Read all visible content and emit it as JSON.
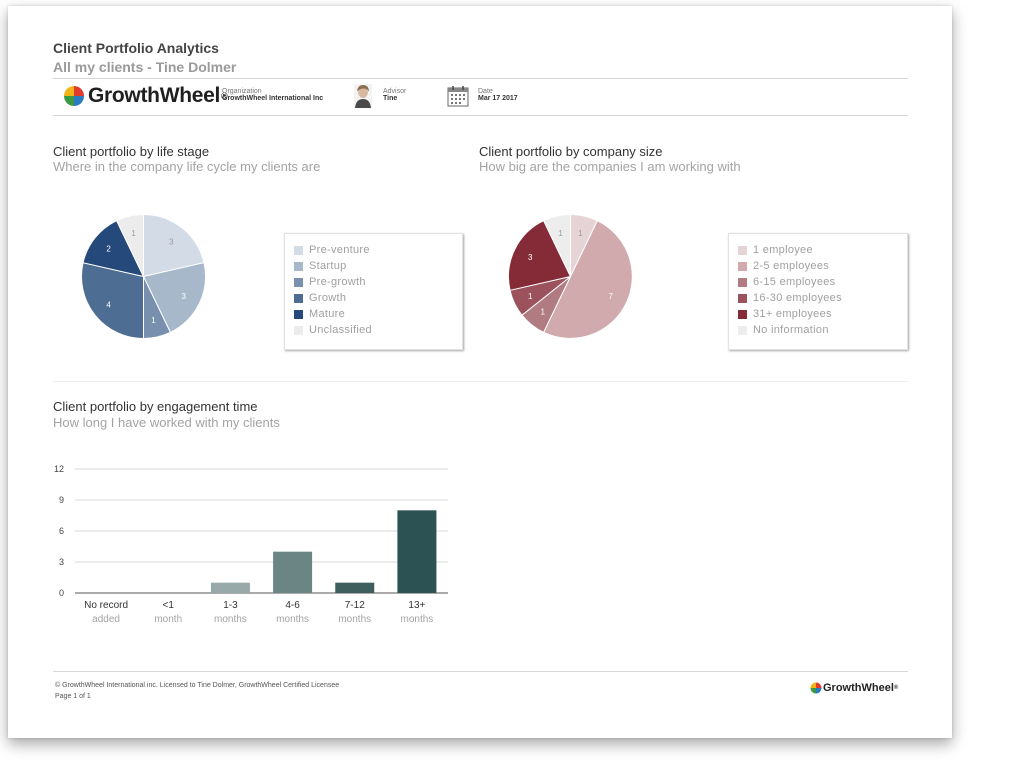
{
  "report": {
    "title": "Client Portfolio Analytics",
    "subtitle": "All my clients - Tine Dolmer"
  },
  "header": {
    "brand": "GrowthWheel",
    "organization_label": "Organization",
    "organization_value": "GrowthWheel International Inc",
    "advisor_label": "Advisor",
    "advisor_value": "Tine",
    "date_label": "Date",
    "date_value": "Mar 17 2017"
  },
  "sections": {
    "life_stage": {
      "title": "Client portfolio by life stage",
      "subtitle": "Where in the company life cycle my clients are"
    },
    "company_size": {
      "title": "Client portfolio by company size",
      "subtitle": "How big are the companies I am working with"
    },
    "engagement": {
      "title": "Client portfolio by engagement time",
      "subtitle": "How long I have worked with my clients"
    }
  },
  "chart_data": [
    {
      "type": "pie",
      "title": "Client portfolio by life stage",
      "subtitle": "Where in the company life cycle my clients are",
      "legend_position": "right",
      "slices": [
        {
          "label": "Pre-venture",
          "value": 3,
          "color": "#d3dce6"
        },
        {
          "label": "Startup",
          "value": 3,
          "color": "#a7b8cb"
        },
        {
          "label": "Pre-growth",
          "value": 1,
          "color": "#7890ad"
        },
        {
          "label": "Growth",
          "value": 4,
          "color": "#4e6d93"
        },
        {
          "label": "Mature",
          "value": 2,
          "color": "#24497a"
        },
        {
          "label": "Unclassified",
          "value": 1,
          "color": "#ececec"
        }
      ]
    },
    {
      "type": "pie",
      "title": "Client portfolio by company size",
      "subtitle": "How big are the companies I am working with",
      "legend_position": "right",
      "slices": [
        {
          "label": "1 employee",
          "value": 1,
          "color": "#e6d3d5"
        },
        {
          "label": "2-5 employees",
          "value": 7,
          "color": "#d1aaae"
        },
        {
          "label": "6-15 employees",
          "value": 1,
          "color": "#b17b82"
        },
        {
          "label": "16-30 employees",
          "value": 1,
          "color": "#9b525d"
        },
        {
          "label": "31+ employees",
          "value": 3,
          "color": "#852b38"
        },
        {
          "label": "No information",
          "value": 1,
          "color": "#ededed"
        }
      ]
    },
    {
      "type": "bar",
      "title": "Client portfolio by engagement time",
      "subtitle": "How long I have worked with my clients",
      "categories": [
        [
          "No record",
          "added"
        ],
        [
          "<1",
          "month"
        ],
        [
          "1-3",
          "months"
        ],
        [
          "4-6",
          "months"
        ],
        [
          "7-12",
          "months"
        ],
        [
          "13+",
          "months"
        ]
      ],
      "values": [
        0,
        0,
        1,
        4,
        1,
        8
      ],
      "colors": [
        "#97a9a9",
        "#97a9a9",
        "#97a9a9",
        "#6b8585",
        "#3f5f5f",
        "#2d5253"
      ],
      "ylim": [
        0,
        12
      ],
      "yticks": [
        0,
        3,
        6,
        9,
        12
      ],
      "grid": true
    }
  ],
  "footer": {
    "license": "© GrowthWheel International inc. Licensed to Tine Dolmer, GrowthWheel Certified Licensee",
    "page": "Page 1 of 1",
    "brand": "GrowthWheel"
  }
}
